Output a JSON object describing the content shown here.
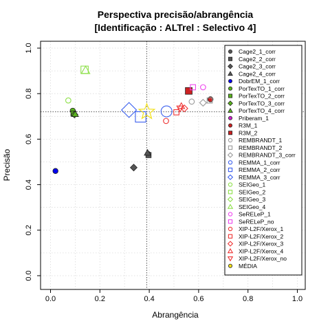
{
  "chart_data": {
    "type": "scatter",
    "title": "Perspectiva precisão/abrangência",
    "subtitle": "[Identificação : ALTrel : Selectivo 4]",
    "xlabel": "Abrangência",
    "ylabel": "Precisão",
    "xlim": [
      0.0,
      1.0
    ],
    "ylim": [
      0.0,
      1.0
    ],
    "xticks": [
      "0.0",
      "0.2",
      "0.4",
      "0.6",
      "0.8",
      "1.0"
    ],
    "yticks": [
      "0.0",
      "0.2",
      "0.4",
      "0.6",
      "0.8",
      "1.0"
    ],
    "grid": true,
    "legend_position": "right",
    "reference_lines": {
      "x": 0.39,
      "y": 0.72
    },
    "series": [
      {
        "name": "Cage2_1_corr",
        "color": "#555555",
        "shape": "circle",
        "filled": true,
        "size": 1,
        "points": [
          [
            0.395,
            0.535
          ]
        ]
      },
      {
        "name": "Cage2_2_corr",
        "color": "#555555",
        "shape": "square",
        "filled": true,
        "size": 1,
        "points": [
          [
            0.397,
            0.53
          ]
        ]
      },
      {
        "name": "Cage2_3_corr",
        "color": "#555555",
        "shape": "diamond",
        "filled": true,
        "size": 1,
        "points": [
          [
            0.337,
            0.475
          ]
        ]
      },
      {
        "name": "Cage2_4_corr",
        "color": "#555555",
        "shape": "triangle-up",
        "filled": true,
        "size": 1,
        "points": [
          [
            0.393,
            0.54
          ]
        ]
      },
      {
        "name": "DobrEM_1_corr",
        "color": "#0000ee",
        "shape": "circle",
        "filled": true,
        "size": 1,
        "points": [
          [
            0.02,
            0.46
          ]
        ]
      },
      {
        "name": "PorTexTO_1_corr",
        "color": "#5ab31e",
        "shape": "circle",
        "filled": true,
        "size": 1,
        "points": [
          [
            0.09,
            0.725
          ]
        ]
      },
      {
        "name": "PorTexTO_2_corr",
        "color": "#5ab31e",
        "shape": "square",
        "filled": true,
        "size": 1,
        "points": [
          [
            0.093,
            0.712
          ]
        ]
      },
      {
        "name": "PorTexTO_3_corr",
        "color": "#5ab31e",
        "shape": "diamond",
        "filled": true,
        "size": 1,
        "points": [
          [
            0.097,
            0.708
          ]
        ]
      },
      {
        "name": "PorTexTO_4_corr",
        "color": "#5ab31e",
        "shape": "triangle-up",
        "filled": true,
        "size": 1,
        "points": [
          [
            0.1,
            0.71
          ]
        ]
      },
      {
        "name": "Priberam_1",
        "color": "#cc22cc",
        "shape": "circle",
        "filled": true,
        "size": 1,
        "points": []
      },
      {
        "name": "R3M_1",
        "color": "#cc2222",
        "shape": "circle",
        "filled": true,
        "size": 1,
        "points": [
          [
            0.648,
            0.775
          ]
        ]
      },
      {
        "name": "R3M_2",
        "color": "#cc2222",
        "shape": "square",
        "filled": true,
        "size": 1.3,
        "points": [
          [
            0.56,
            0.812
          ]
        ]
      },
      {
        "name": "REMBRANDT_1",
        "color": "#999999",
        "shape": "circle",
        "filled": false,
        "size": 1,
        "points": [
          [
            0.572,
            0.765
          ]
        ]
      },
      {
        "name": "REMBRANDT_2",
        "color": "#999999",
        "shape": "square",
        "filled": false,
        "size": 1,
        "points": [
          [
            0.645,
            0.77
          ]
        ]
      },
      {
        "name": "REMBRANDT_3_corr",
        "color": "#999999",
        "shape": "diamond",
        "filled": false,
        "size": 1,
        "points": [
          [
            0.618,
            0.76
          ]
        ]
      },
      {
        "name": "REMMA_1_corr",
        "color": "#3a5fee",
        "shape": "circle",
        "filled": false,
        "size": 2.1,
        "points": [
          [
            0.47,
            0.722
          ]
        ]
      },
      {
        "name": "REMMA_2_corr",
        "color": "#3a5fee",
        "shape": "square",
        "filled": false,
        "size": 2,
        "points": [
          [
            0.365,
            0.698
          ]
        ]
      },
      {
        "name": "REMMA_3_corr",
        "color": "#3a5fee",
        "shape": "diamond",
        "filled": false,
        "size": 2.2,
        "points": [
          [
            0.318,
            0.728
          ]
        ]
      },
      {
        "name": "SEIGeo_1",
        "color": "#8ee04a",
        "shape": "circle",
        "filled": false,
        "size": 1,
        "points": [
          [
            0.072,
            0.77
          ]
        ]
      },
      {
        "name": "SEIGeo_2",
        "color": "#8ee04a",
        "shape": "square",
        "filled": false,
        "size": 1.4,
        "points": [
          [
            0.138,
            0.905
          ]
        ]
      },
      {
        "name": "SEIGeo_3",
        "color": "#8ee04a",
        "shape": "diamond",
        "filled": false,
        "size": 1,
        "points": []
      },
      {
        "name": "SEIGeo_4",
        "color": "#8ee04a",
        "shape": "triangle-up",
        "filled": false,
        "size": 1.3,
        "points": [
          [
            0.142,
            0.902
          ]
        ]
      },
      {
        "name": "SeRELeP_1",
        "color": "#ee44ee",
        "shape": "circle",
        "filled": false,
        "size": 1,
        "points": [
          [
            0.618,
            0.828
          ]
        ]
      },
      {
        "name": "SeRELeP_no",
        "color": "#ee44ee",
        "shape": "square",
        "filled": false,
        "size": 1,
        "points": [
          [
            0.577,
            0.828
          ]
        ]
      },
      {
        "name": "XIP-L2F/Xerox_1",
        "color": "#ee3333",
        "shape": "circle",
        "filled": false,
        "size": 1,
        "points": [
          [
            0.468,
            0.68
          ]
        ]
      },
      {
        "name": "XIP-L2F/Xerox_2",
        "color": "#ee3333",
        "shape": "square",
        "filled": false,
        "size": 1,
        "points": [
          [
            0.51,
            0.718
          ]
        ]
      },
      {
        "name": "XIP-L2F/Xerox_3",
        "color": "#ee3333",
        "shape": "diamond",
        "filled": false,
        "size": 1,
        "points": [
          [
            0.542,
            0.735
          ]
        ]
      },
      {
        "name": "XIP-L2F/Xerox_4",
        "color": "#ee3333",
        "shape": "triangle-up",
        "filled": false,
        "size": 1,
        "points": [
          [
            0.53,
            0.745
          ]
        ]
      },
      {
        "name": "XIP-L2F/Xerox_no",
        "color": "#ee3333",
        "shape": "triangle-down",
        "filled": false,
        "size": 1,
        "points": [
          [
            0.525,
            0.735
          ]
        ]
      },
      {
        "name": "MÉDIA",
        "color": "#f2e018",
        "shape": "circle",
        "filled": true,
        "size": 1,
        "points": []
      }
    ],
    "extra_points": [
      {
        "series": "MÉDIA",
        "color": "#f2e018",
        "shape": "star",
        "size": 2.6,
        "x": 0.39,
        "y": 0.72
      }
    ]
  }
}
